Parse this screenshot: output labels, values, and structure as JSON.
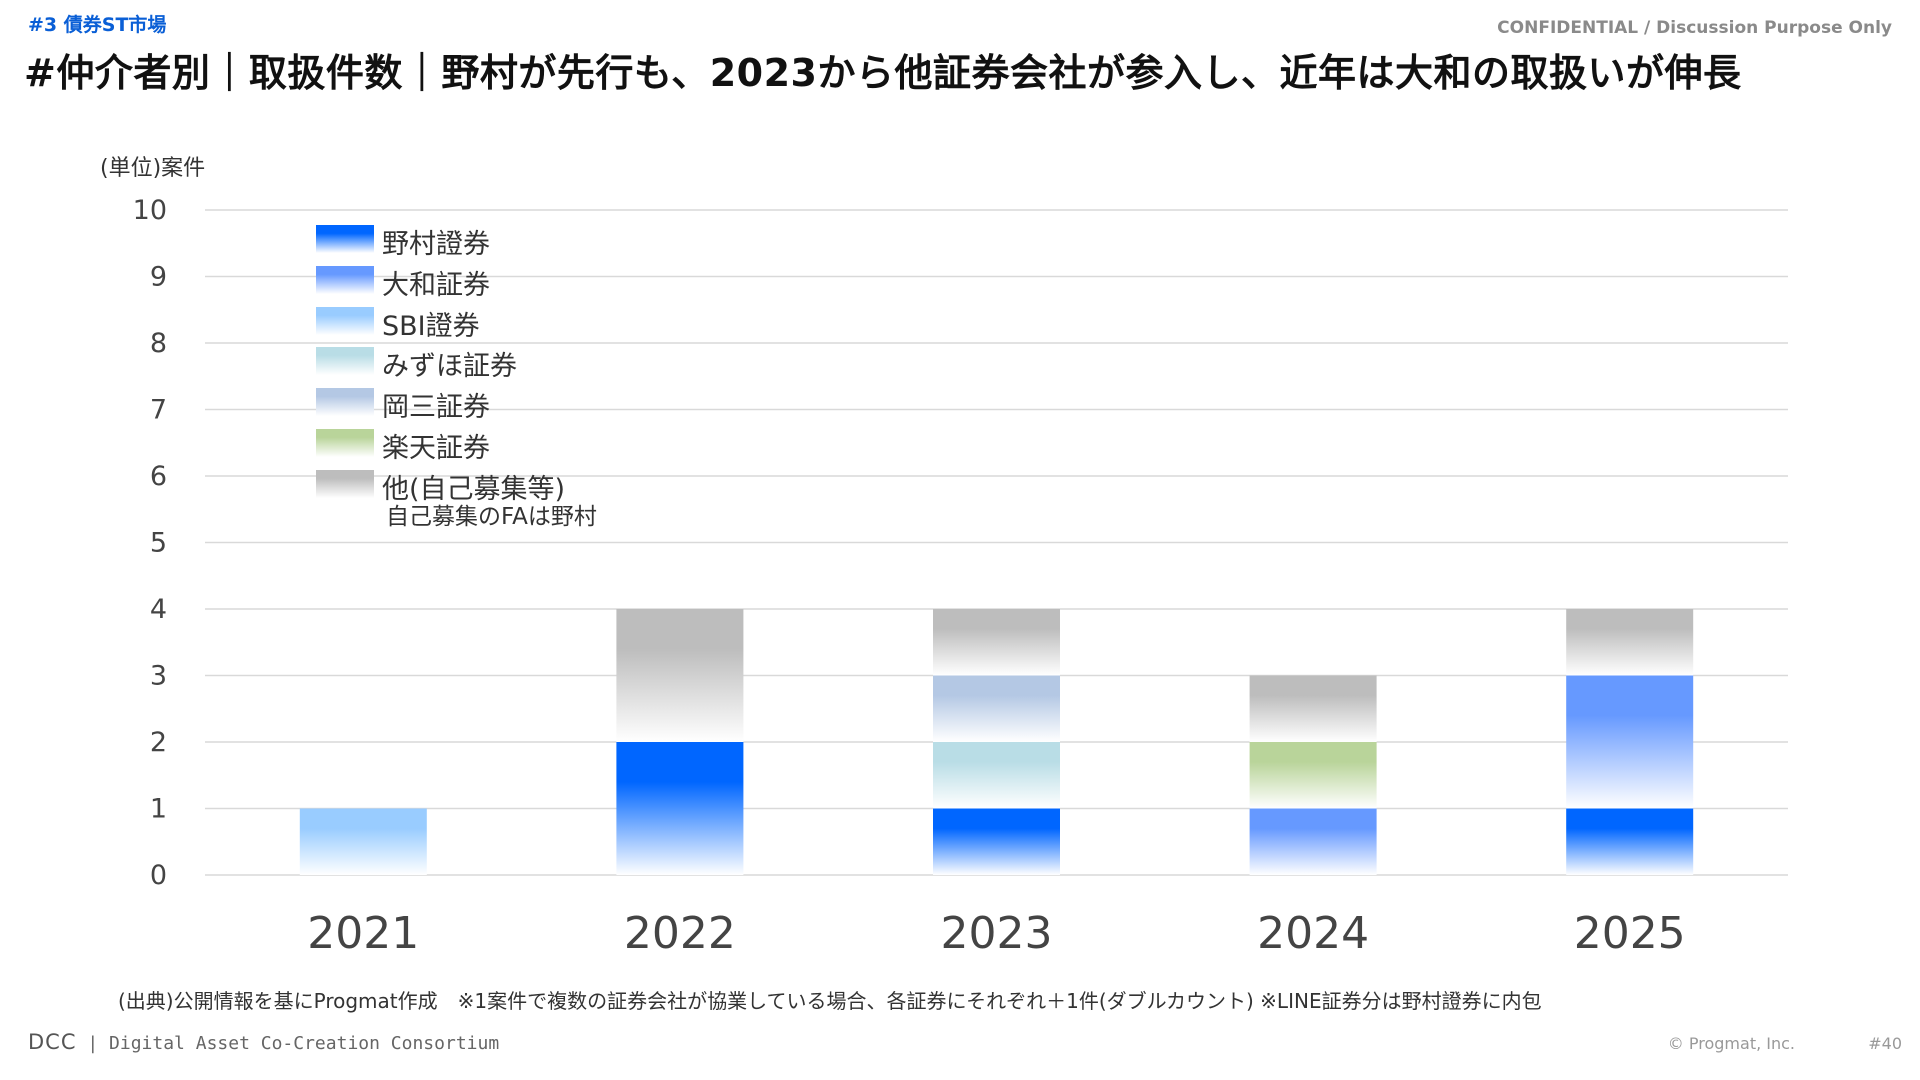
{
  "header": {
    "section_tag": "#3  債券ST市場",
    "confidential": "CONFIDENTIAL / Discussion Purpose Only",
    "title": "#仲介者別｜取扱件数｜野村が先行も、2023から他証券会社が参入し、近年は大和の取扱いが伸長"
  },
  "chart_data": {
    "type": "bar",
    "stacked": true,
    "unit_label": "(単位)案件",
    "categories": [
      "2021",
      "2022",
      "2023",
      "2024",
      "2025"
    ],
    "ylim": [
      0,
      10
    ],
    "yticks": [
      0,
      1,
      2,
      3,
      4,
      5,
      6,
      7,
      8,
      9,
      10
    ],
    "grid": true,
    "legend_position": "top-left",
    "series": [
      {
        "name": "野村證券",
        "color": "#0066ff",
        "values": [
          0,
          2,
          1,
          0,
          1
        ]
      },
      {
        "name": "大和証券",
        "color": "#6699ff",
        "values": [
          0,
          0,
          0,
          1,
          2
        ]
      },
      {
        "name": "SBI證券",
        "color": "#99ccff",
        "values": [
          1,
          0,
          0,
          0,
          0
        ]
      },
      {
        "name": "みずほ証券",
        "color": "#b9dde6",
        "values": [
          0,
          0,
          1,
          0,
          0
        ]
      },
      {
        "name": "岡三証券",
        "color": "#b4c8e4",
        "values": [
          0,
          0,
          1,
          0,
          0
        ]
      },
      {
        "name": "楽天証券",
        "color": "#b9d49a",
        "values": [
          0,
          0,
          0,
          1,
          0
        ]
      },
      {
        "name": "他(自己募集等)",
        "color": "#bdbdbd",
        "values": [
          0,
          2,
          1,
          1,
          1
        ]
      }
    ],
    "legend_note": "自己募集のFAは野村"
  },
  "footer": {
    "source_note": "(出典)公開情報を基にProgmat作成　※1案件で複数の証券会社が協業している場合、各証券にそれぞれ＋1件(ダブルカウント) ※LINE証券分は野村證券に内包",
    "logo_dcc": "DCC",
    "logo_text": "Digital Asset Co-Creation Consortium",
    "copyright": "© Progmat, Inc.",
    "page_number": "#40"
  }
}
